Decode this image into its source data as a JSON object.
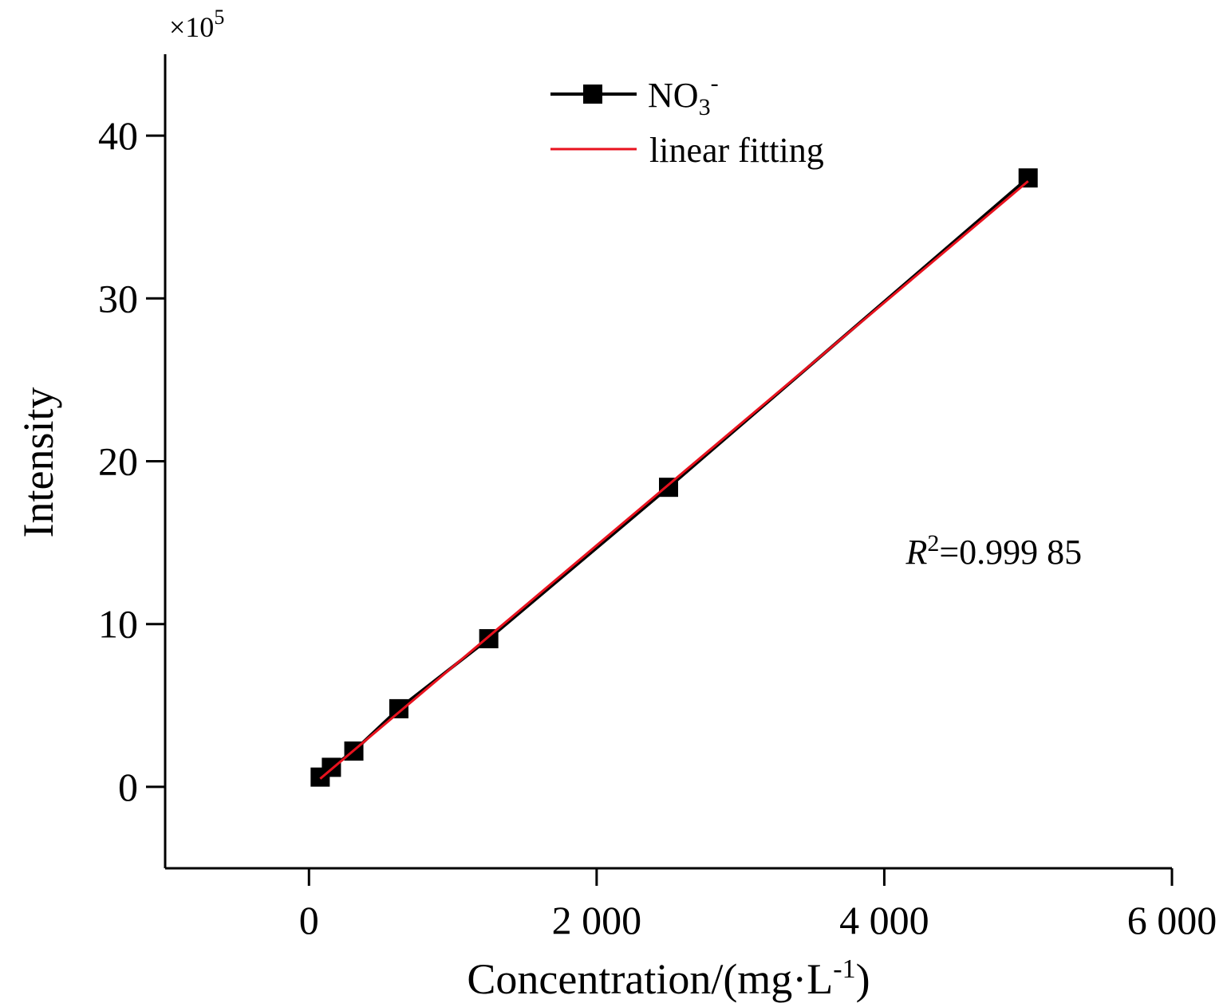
{
  "chart_data": {
    "type": "scatter",
    "xlabel": "Concentration/(mg·L",
    "xlabel_sup": "-1",
    "xlabel_end": ")",
    "ylabel": "Intensity",
    "y_multiplier": "×10",
    "y_multiplier_exp": "5",
    "xlim": [
      -1000,
      6000
    ],
    "ylim": [
      -5,
      45
    ],
    "x_ticks": [
      0,
      2000,
      4000,
      6000
    ],
    "x_tick_labels": [
      "0",
      "2 000",
      "4 000",
      "6 000"
    ],
    "y_ticks": [
      0,
      10,
      20,
      30,
      40
    ],
    "y_tick_labels": [
      "0",
      "10",
      "20",
      "30",
      "40"
    ],
    "grid": false,
    "legend_position": "top-center",
    "series": [
      {
        "name": "NO",
        "name_sub": "3",
        "name_sup": "-",
        "style": "line-square-markers",
        "color": "#000000",
        "x": [
          78,
          156,
          312,
          625,
          1250,
          2500,
          5000
        ],
        "y": [
          0.6,
          1.2,
          2.2,
          4.8,
          9.1,
          18.4,
          37.4
        ]
      },
      {
        "name": "linear fitting",
        "style": "line",
        "color": "#e8121e",
        "x": [
          78,
          5000
        ],
        "y": [
          0.5,
          37.2
        ]
      }
    ],
    "annotation": {
      "italic": "R",
      "sup": "2",
      "text": "=0.999 85",
      "x": 4150,
      "y": 14.5
    }
  }
}
